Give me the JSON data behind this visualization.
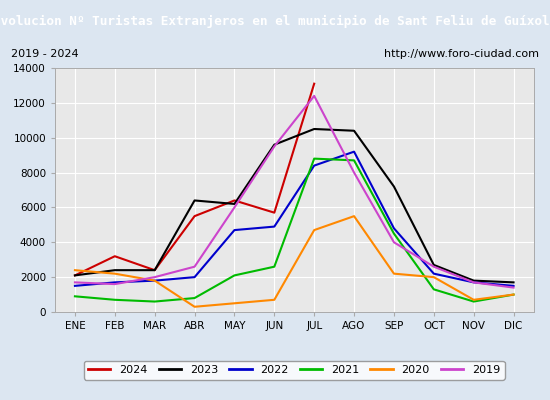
{
  "title": "Evolucion Nº Turistas Extranjeros en el municipio de Sant Feliu de Guíxols",
  "subtitle_left": "2019 - 2024",
  "subtitle_right": "http://www.foro-ciudad.com",
  "months": [
    "ENE",
    "FEB",
    "MAR",
    "ABR",
    "MAY",
    "JUN",
    "JUL",
    "AGO",
    "SEP",
    "OCT",
    "NOV",
    "DIC"
  ],
  "ylim": [
    0,
    14000
  ],
  "yticks": [
    0,
    2000,
    4000,
    6000,
    8000,
    10000,
    12000,
    14000
  ],
  "series": {
    "2024": {
      "color": "#cc0000",
      "linewidth": 1.5,
      "data": [
        2100,
        3200,
        2400,
        5500,
        6400,
        5700,
        13100,
        null,
        null,
        null,
        null,
        null
      ]
    },
    "2023": {
      "color": "#000000",
      "linewidth": 1.5,
      "data": [
        2100,
        2400,
        2400,
        6400,
        6200,
        9600,
        10500,
        10400,
        7200,
        2700,
        1800,
        1700
      ]
    },
    "2022": {
      "color": "#0000cc",
      "linewidth": 1.5,
      "data": [
        1500,
        1700,
        1800,
        2000,
        4700,
        4900,
        8400,
        9200,
        4800,
        2200,
        1700,
        1500
      ]
    },
    "2021": {
      "color": "#00bb00",
      "linewidth": 1.5,
      "data": [
        900,
        700,
        600,
        800,
        2100,
        2600,
        8800,
        8700,
        4500,
        1300,
        600,
        1000
      ]
    },
    "2020": {
      "color": "#ff8800",
      "linewidth": 1.5,
      "data": [
        2400,
        2200,
        1800,
        300,
        500,
        700,
        4700,
        5500,
        2200,
        2000,
        700,
        1000
      ]
    },
    "2019": {
      "color": "#cc44cc",
      "linewidth": 1.5,
      "data": [
        1700,
        1600,
        2000,
        2600,
        6000,
        9500,
        12400,
        8000,
        4000,
        2600,
        1700,
        1400
      ]
    }
  },
  "title_bg_color": "#4a90d9",
  "title_text_color": "#ffffff",
  "plot_bg_color": "#e8e8e8",
  "subtitle_bg_color": "#ffffff",
  "outer_bg_color": "#dce6f1",
  "grid_color": "#ffffff",
  "legend_order": [
    "2024",
    "2023",
    "2022",
    "2021",
    "2020",
    "2019"
  ]
}
